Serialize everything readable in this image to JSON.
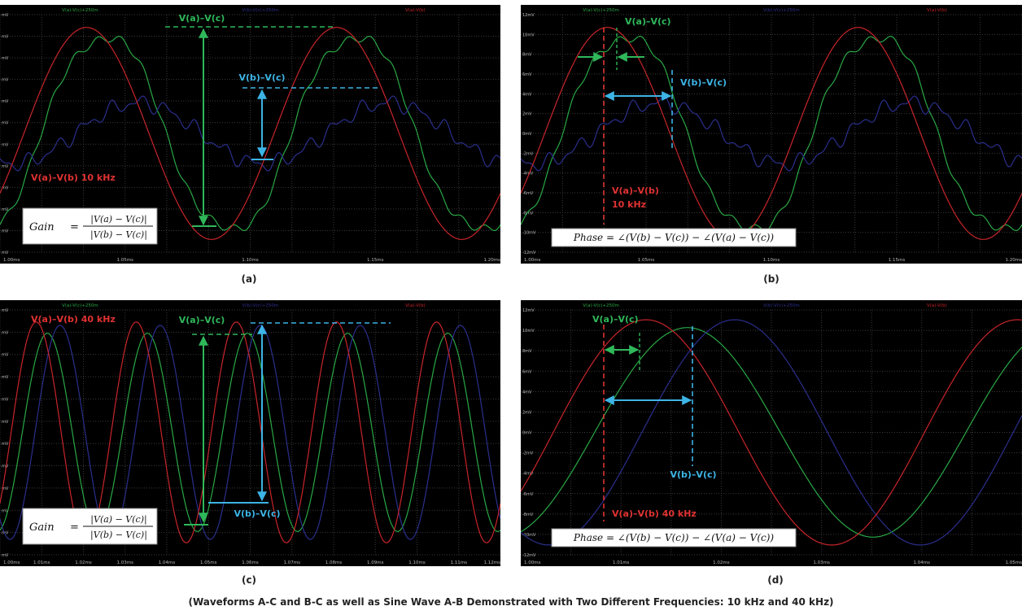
{
  "caption": "(Waveforms A-C and B-C as well as Sine Wave A-B Demonstrated with Two Different Frequencies: 10 kHz and 40 kHz)",
  "colors": {
    "red": "#c8252a",
    "green": "#29a845",
    "blue": "#2b2f8c",
    "green_ann": "#2fb85a",
    "cyan_ann": "#3db4e6",
    "red_ann": "#e03232"
  },
  "chart_data": [
    {
      "id": "a",
      "type": "line",
      "panel_label": "(a)",
      "legend": [
        "V(a)-V(c)+250m",
        "V(b)-V(c)+250m",
        "V(a)-V(b)"
      ],
      "series": [
        {
          "name": "V(a)-V(c)+250m",
          "color": "green",
          "kind": "distorted",
          "amp": 1.0,
          "phase": -0.45
        },
        {
          "name": "V(b)-V(c)+250m",
          "color": "blue",
          "kind": "small",
          "amp": 0.28,
          "phase": -1.3
        },
        {
          "name": "V(a)-V(b)",
          "color": "red",
          "kind": "sine",
          "amp": 0.97,
          "phase": 0
        }
      ],
      "frequency_khz": 10,
      "x_ticks": [
        "1.00ms",
        "1.05ms",
        "1.10ms",
        "1.15ms",
        "1.20ms"
      ],
      "y_ticks": [
        "mV",
        "mV",
        "mV",
        "mV",
        "mV",
        "mV",
        "mV",
        "mV",
        "mV",
        "mV",
        "mV",
        "mV"
      ],
      "annotations": {
        "label_green": "V(a)–V(c)",
        "label_cyan": "V(b)–V(c)",
        "label_red": "V(a)–V(b) 10 kHz"
      },
      "formula": {
        "lhs": "Gain",
        "num": "|V(a) − V(c)|",
        "den": "|V(b) − V(c)|"
      }
    },
    {
      "id": "b",
      "type": "line",
      "panel_label": "(b)",
      "legend": [
        "V(a)-V(c)+250m",
        "V(b)-V(c)+250m",
        "V(a)-V(b)"
      ],
      "series": [
        {
          "name": "V(a)-V(c)+250m",
          "color": "green",
          "kind": "distorted",
          "amp": 1.0,
          "phase": -0.45
        },
        {
          "name": "V(b)-V(c)+250m",
          "color": "blue",
          "kind": "small",
          "amp": 0.28,
          "phase": -1.3
        },
        {
          "name": "V(a)-V(b)",
          "color": "red",
          "kind": "sine",
          "amp": 0.97,
          "phase": 0
        }
      ],
      "frequency_khz": 10,
      "x_ticks": [
        "1.00ms",
        "1.05ms",
        "1.10ms",
        "1.15ms",
        "1.20ms"
      ],
      "y_ticks": [
        "12mV",
        "10mV",
        "8mV",
        "6mV",
        "4mV",
        "2mV",
        "0mV",
        "-2mV",
        "-4mV",
        "-6mV",
        "-8mV",
        "-10mV",
        "-12mV"
      ],
      "annotations": {
        "label_green": "V(a)–V(c)",
        "label_cyan": "V(b)–V(c)",
        "label_red_1": "V(a)–V(b)",
        "label_red_2": "10 kHz"
      },
      "formula": {
        "text": "Phase = ∠(V(b) − V(c)) − ∠(V(a) − V(c))"
      }
    },
    {
      "id": "c",
      "type": "line",
      "panel_label": "(c)",
      "legend": [
        "V(a)-V(c)+250m",
        "V(b)-V(c)+250m",
        "V(a)-V(b)"
      ],
      "series": [
        {
          "name": "V(a)-V(c)+250m",
          "color": "green",
          "kind": "sine",
          "amp": 0.88,
          "phase": -0.7
        },
        {
          "name": "V(b)-V(c)+250m",
          "color": "blue",
          "kind": "sine",
          "amp": 0.95,
          "phase": -1.5
        },
        {
          "name": "V(a)-V(b)",
          "color": "red",
          "kind": "sine",
          "amp": 0.98,
          "phase": 0
        }
      ],
      "frequency_khz": 40,
      "x_ticks": [
        "1.00ms",
        "1.01ms",
        "1.02ms",
        "1.03ms",
        "1.04ms",
        "1.05ms",
        "1.06ms",
        "1.07ms",
        "1.08ms",
        "1.09ms",
        "1.10ms",
        "1.11ms",
        "1.12ms"
      ],
      "y_ticks": [
        "mV",
        "mV",
        "mV",
        "mV",
        "mV",
        "mV",
        "mV",
        "mV",
        "mV",
        "mV",
        "mV",
        "mV"
      ],
      "annotations": {
        "label_red": "V(a)–V(b) 40 kHz",
        "label_green": "V(a)–V(c)",
        "label_cyan": "V(b)–V(c)"
      },
      "formula": {
        "lhs": "Gain",
        "num": "|V(a) − V(c)|",
        "den": "|V(b) − V(c)|"
      }
    },
    {
      "id": "d",
      "type": "line",
      "panel_label": "(d)",
      "legend": [
        "V(a)-V(c)+250m",
        "V(b)-V(c)+250m",
        "V(a)-V(b)"
      ],
      "series": [
        {
          "name": "V(a)-V(c)+250m",
          "color": "green",
          "kind": "sine",
          "amp": 0.93,
          "phase": -0.7
        },
        {
          "name": "V(b)-V(c)+250m",
          "color": "blue",
          "kind": "sine",
          "amp": 1.0,
          "phase": -1.5
        },
        {
          "name": "V(a)-V(b)",
          "color": "red",
          "kind": "sine",
          "amp": 1.0,
          "phase": 0
        }
      ],
      "frequency_khz": 40,
      "x_ticks": [
        "1.00ms",
        "1.01ms",
        "1.02ms",
        "1.03ms",
        "1.04ms",
        "1.05ms"
      ],
      "y_ticks": [
        "12mV",
        "10mV",
        "8mV",
        "6mV",
        "4mV",
        "2mV",
        "0mV",
        "-2mV",
        "-4mV",
        "-6mV",
        "-8mV",
        "-10mV",
        "-12mV"
      ],
      "annotations": {
        "label_green": "V(a)–V(c)",
        "label_cyan": "V(b)–V(c)",
        "label_red": "V(a)–V(b) 40 kHz"
      },
      "formula": {
        "text": "Phase = ∠(V(b) − V(c)) − ∠(V(a) − V(c))"
      }
    }
  ]
}
